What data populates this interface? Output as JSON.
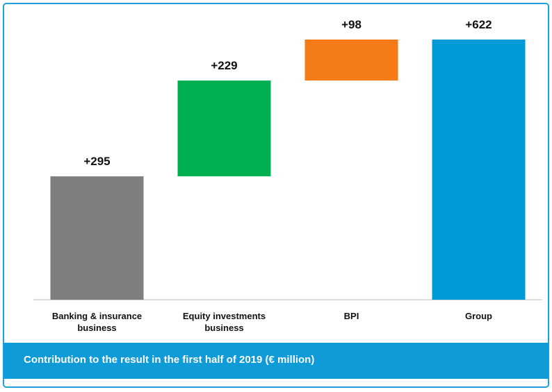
{
  "chart_data": {
    "type": "waterfall",
    "title": "Contribution to the result  in the first half of 2019 (€ million)",
    "categories": [
      "Banking & insurance business",
      "Equity investments business",
      "BPI",
      "Group"
    ],
    "values": [
      295,
      229,
      98,
      622
    ],
    "value_labels": [
      "+295",
      "+229",
      "+98",
      "+622"
    ],
    "colors": [
      "#7f7f7f",
      "#00b050",
      "#f47b16",
      "#009ad9"
    ]
  }
}
